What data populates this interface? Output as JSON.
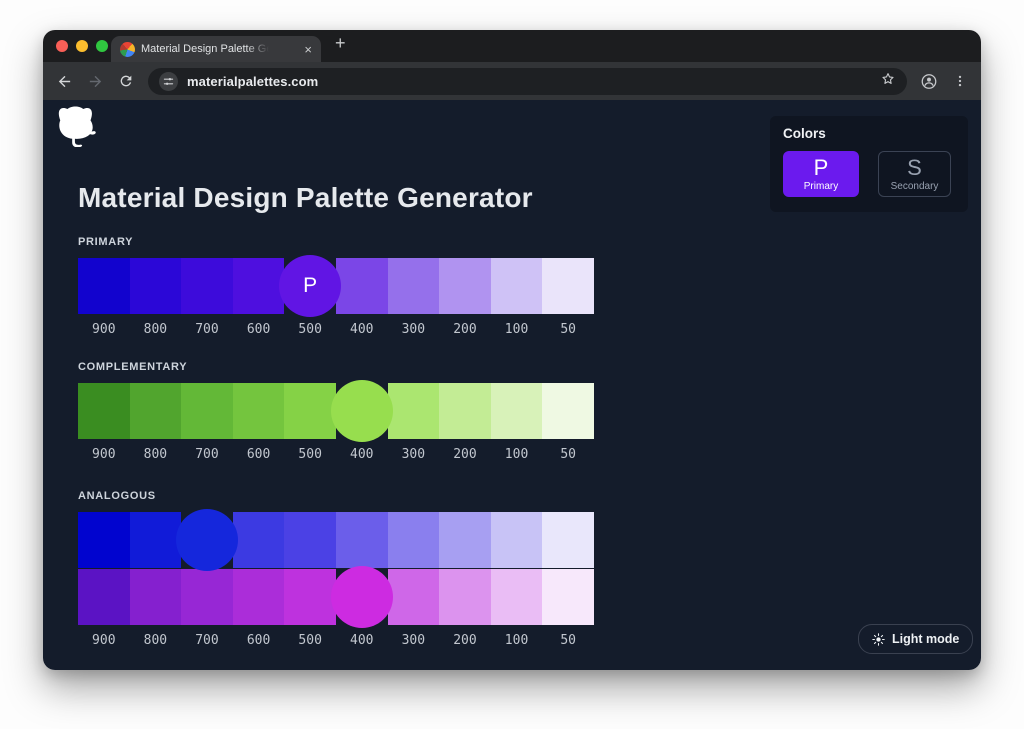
{
  "browser": {
    "tab": {
      "title": "Material Design Palette Gene",
      "close_glyph": "×",
      "new_tab_glyph": "+"
    },
    "toolbar": {
      "url": "materialpalettes.com"
    }
  },
  "page": {
    "title": "Material Design Palette Generator",
    "colors_panel": {
      "label": "Colors",
      "primary_letter": "P",
      "primary_label": "Primary",
      "primary_color": "#6b1aee",
      "secondary_letter": "S",
      "secondary_label": "Secondary"
    },
    "light_mode_label": "Light mode",
    "shade_labels": [
      "900",
      "800",
      "700",
      "600",
      "500",
      "400",
      "300",
      "200",
      "100",
      "50"
    ],
    "palettes": [
      {
        "label": "PRIMARY",
        "rows": [
          {
            "circle": {
              "index": 4,
              "letter": "P"
            },
            "colors": [
              "#1203ce",
              "#2b07d7",
              "#3d0bdb",
              "#4e0fdf",
              "#6115e4",
              "#7b46e7",
              "#9570eb",
              "#b093f0",
              "#cfc2f6",
              "#eae4fa"
            ]
          }
        ]
      },
      {
        "label": "COMPLEMENTARY",
        "rows": [
          {
            "circle": {
              "index": 5
            },
            "colors": [
              "#3a8d21",
              "#51a52e",
              "#63b837",
              "#74c53e",
              "#85d246",
              "#97de4e",
              "#abe670",
              "#c3ec95",
              "#d8f2b9",
              "#eff9e3"
            ]
          }
        ]
      },
      {
        "label": "ANALOGOUS",
        "rows": [
          {
            "circle": {
              "index": 2
            },
            "colors": [
              "#0104cf",
              "#111bd8",
              "#1527dc",
              "#3c3ae2",
              "#4b41e5",
              "#6b5eea",
              "#8a7fee",
              "#a79ff2",
              "#c8c3f6",
              "#e9e7fb"
            ]
          },
          {
            "circle": {
              "index": 5
            },
            "colors": [
              "#5b13c4",
              "#8520cf",
              "#9727d5",
              "#ab2dd9",
              "#be32de",
              "#cd2be1",
              "#cf67e8",
              "#dc93ee",
              "#eabdf5",
              "#f7e8fb"
            ]
          }
        ]
      }
    ]
  },
  "theme": {
    "page_bg": "#141c2b",
    "accent": "#6b1aee"
  }
}
